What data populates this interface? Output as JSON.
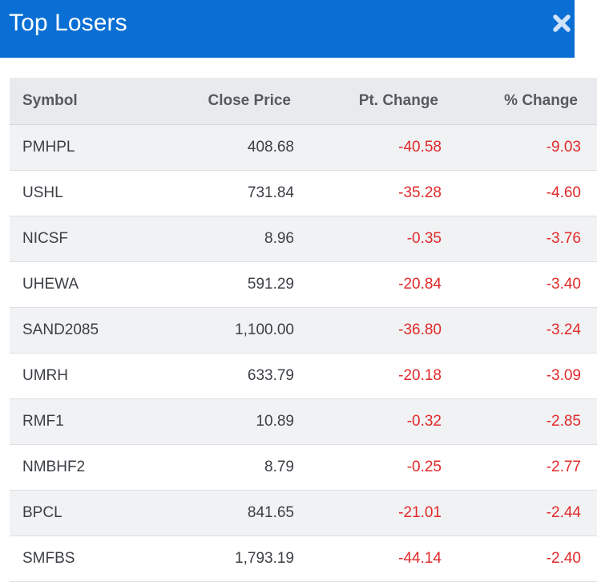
{
  "header": {
    "title": "Top Losers",
    "close_icon": "close-icon",
    "bg_color": "#0a6fd4"
  },
  "table": {
    "columns": [
      "Symbol",
      "Close Price",
      "Pt. Change",
      "% Change"
    ],
    "rows": [
      {
        "symbol": "PMHPL",
        "close_price": "408.68",
        "pt_change": "-40.58",
        "pct_change": "-9.03"
      },
      {
        "symbol": "USHL",
        "close_price": "731.84",
        "pt_change": "-35.28",
        "pct_change": "-4.60"
      },
      {
        "symbol": "NICSF",
        "close_price": "8.96",
        "pt_change": "-0.35",
        "pct_change": "-3.76"
      },
      {
        "symbol": "UHEWA",
        "close_price": "591.29",
        "pt_change": "-20.84",
        "pct_change": "-3.40"
      },
      {
        "symbol": "SAND2085",
        "close_price": "1,100.00",
        "pt_change": "-36.80",
        "pct_change": "-3.24"
      },
      {
        "symbol": "UMRH",
        "close_price": "633.79",
        "pt_change": "-20.18",
        "pct_change": "-3.09"
      },
      {
        "symbol": "RMF1",
        "close_price": "10.89",
        "pt_change": "-0.32",
        "pct_change": "-2.85"
      },
      {
        "symbol": "NMBHF2",
        "close_price": "8.79",
        "pt_change": "-0.25",
        "pct_change": "-2.77"
      },
      {
        "symbol": "BPCL",
        "close_price": "841.65",
        "pt_change": "-21.01",
        "pct_change": "-2.44"
      },
      {
        "symbol": "SMFBS",
        "close_price": "1,793.19",
        "pt_change": "-44.14",
        "pct_change": "-2.40"
      }
    ],
    "negative_color": "#e02a2a"
  }
}
